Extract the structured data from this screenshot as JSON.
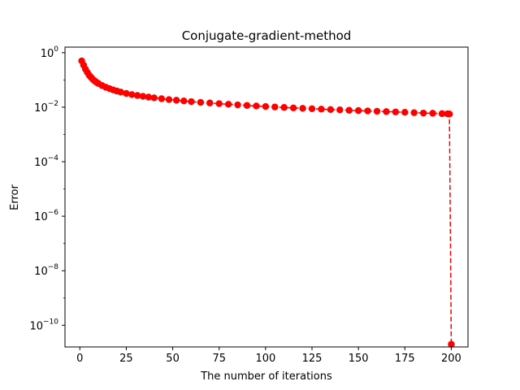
{
  "chart_data": {
    "type": "scatter",
    "title": "Conjugate-gradient-method",
    "xlabel": "The number of iterations",
    "ylabel": "Error",
    "xlim": [
      -8,
      209
    ],
    "ylim": [
      1.6e-11,
      1.6
    ],
    "yscale": "log",
    "grid": false,
    "xticks": [
      0,
      25,
      50,
      75,
      100,
      125,
      150,
      175,
      200
    ],
    "xtick_labels": [
      "0",
      "25",
      "50",
      "75",
      "100",
      "125",
      "150",
      "175",
      "200"
    ],
    "yticks": [
      1,
      0.01,
      0.0001,
      1e-06,
      1e-08,
      1e-10
    ],
    "ytick_labels": [
      {
        "base": "10",
        "exp": "0"
      },
      {
        "base": "10",
        "exp": "−2"
      },
      {
        "base": "10",
        "exp": "−4"
      },
      {
        "base": "10",
        "exp": "−6"
      },
      {
        "base": "10",
        "exp": "−8"
      },
      {
        "base": "10",
        "exp": "−10"
      }
    ],
    "series": [
      {
        "style": "red dashed line with circle markers",
        "color": "#ff0000",
        "points": [
          [
            1,
            0.5
          ],
          [
            2,
            0.35
          ],
          [
            3,
            0.25
          ],
          [
            4,
            0.19
          ],
          [
            5,
            0.15
          ],
          [
            6,
            0.125
          ],
          [
            7,
            0.105
          ],
          [
            8,
            0.092
          ],
          [
            9,
            0.082
          ],
          [
            10,
            0.074
          ],
          [
            12,
            0.062
          ],
          [
            14,
            0.054
          ],
          [
            16,
            0.048
          ],
          [
            18,
            0.043
          ],
          [
            20,
            0.039
          ],
          [
            22,
            0.036
          ],
          [
            25,
            0.032
          ],
          [
            28,
            0.029
          ],
          [
            31,
            0.027
          ],
          [
            34,
            0.025
          ],
          [
            37,
            0.0235
          ],
          [
            40,
            0.022
          ],
          [
            44,
            0.0205
          ],
          [
            48,
            0.019
          ],
          [
            52,
            0.018
          ],
          [
            56,
            0.017
          ],
          [
            60,
            0.016
          ],
          [
            65,
            0.015
          ],
          [
            70,
            0.0143
          ],
          [
            75,
            0.0135
          ],
          [
            80,
            0.0128
          ],
          [
            85,
            0.0122
          ],
          [
            90,
            0.0116
          ],
          [
            95,
            0.0111
          ],
          [
            100,
            0.0106
          ],
          [
            105,
            0.0102
          ],
          [
            110,
            0.0098
          ],
          [
            115,
            0.0094
          ],
          [
            120,
            0.0091
          ],
          [
            125,
            0.0088
          ],
          [
            130,
            0.0085
          ],
          [
            135,
            0.0082
          ],
          [
            140,
            0.008
          ],
          [
            145,
            0.0077
          ],
          [
            150,
            0.0075
          ],
          [
            155,
            0.0073
          ],
          [
            160,
            0.0071
          ],
          [
            165,
            0.0069
          ],
          [
            170,
            0.0067
          ],
          [
            175,
            0.0065
          ],
          [
            180,
            0.0063
          ],
          [
            185,
            0.0061
          ],
          [
            190,
            0.006
          ],
          [
            195,
            0.0058
          ],
          [
            198,
            0.0057
          ],
          [
            199,
            0.0056
          ],
          [
            200,
            2e-11
          ]
        ]
      }
    ]
  }
}
